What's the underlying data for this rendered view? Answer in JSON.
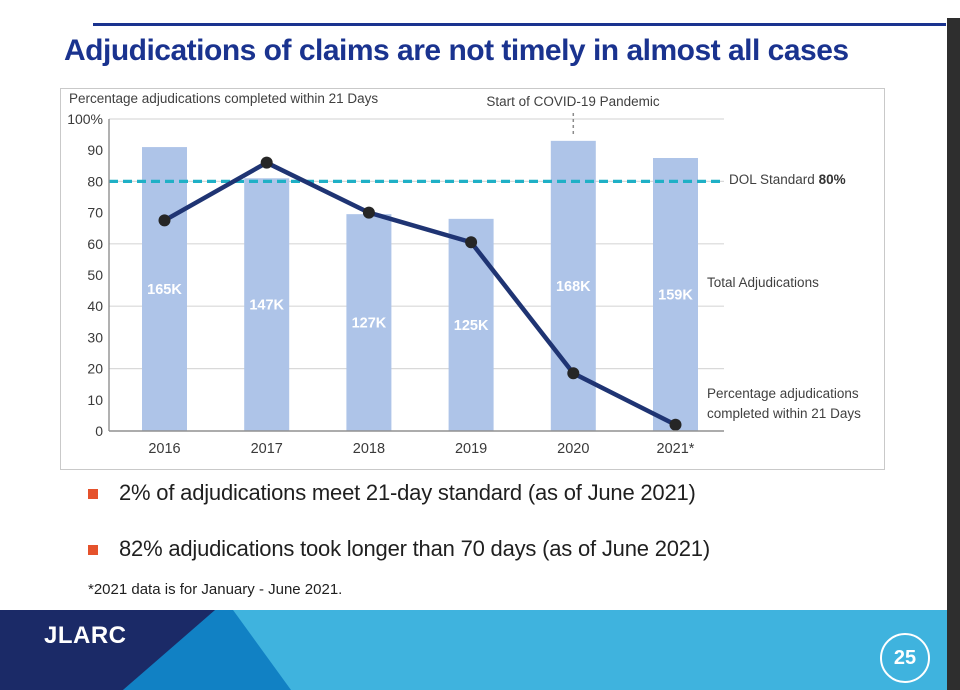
{
  "title": "Adjudications of claims are not timely in almost all cases",
  "chart": {
    "header": "Percentage adjudications completed within 21 Days",
    "annotation": "Start of COVID-19 Pandemic",
    "ref_label": "DOL Standard ",
    "ref_value": "80%",
    "bar_series_label": "Total Adjudications",
    "line_series_label_line1": "Percentage adjudications",
    "line_series_label_line2": "completed within 21 Days"
  },
  "chart_data": {
    "type": "combo-bar-line",
    "title": "Percentage adjudications completed within 21 Days",
    "categories": [
      "2016",
      "2017",
      "2018",
      "2019",
      "2020",
      "2021*"
    ],
    "series": [
      {
        "name": "Total Adjudications",
        "type": "bar",
        "labels": [
          "165K",
          "147K",
          "127K",
          "125K",
          "168K",
          "159K"
        ],
        "values": [
          165000,
          147000,
          127000,
          125000,
          168000,
          159000
        ],
        "display_height_pct": [
          91,
          81,
          69.5,
          68,
          93,
          87.5
        ]
      },
      {
        "name": "Percentage adjudications completed within 21 Days",
        "type": "line",
        "unit": "%",
        "values": [
          67.5,
          86,
          70,
          60.5,
          18.5,
          2
        ]
      }
    ],
    "reference_line": {
      "label": "DOL Standard 80%",
      "value": 80
    },
    "annotation": {
      "text": "Start of COVID-19 Pandemic",
      "category": "2020"
    },
    "y_axis": {
      "min": 0,
      "max": 100,
      "tick_labels": [
        "100%",
        "90",
        "80",
        "70",
        "60",
        "50",
        "40",
        "30",
        "20",
        "10",
        "0"
      ],
      "gridline_values": [
        20,
        40,
        60,
        80,
        100
      ]
    },
    "legend_position": "right-of-plot",
    "grid": true
  },
  "bullets": [
    "2% of adjudications meet 21-day standard (as of June 2021)",
    "82% adjudications took longer than 70 days (as of June 2021)"
  ],
  "footnote": "*2021 data is for January - June 2021.",
  "footer": {
    "logo": "JLARC",
    "page": "25"
  },
  "colors": {
    "title_navy": "#1a338f",
    "bar_fill": "#aec4e8",
    "line": "#1f3473",
    "marker": "#262626",
    "reference_teal": "#1fb0c6",
    "gridline": "#d9d9d9",
    "axis": "#909090",
    "chart_text": "#3a3a3a",
    "bullet_orange": "#e5522c",
    "footer_navy": "#1b2a67",
    "footer_mid_blue": "#1181c4",
    "footer_light_blue": "#3fb3de"
  }
}
